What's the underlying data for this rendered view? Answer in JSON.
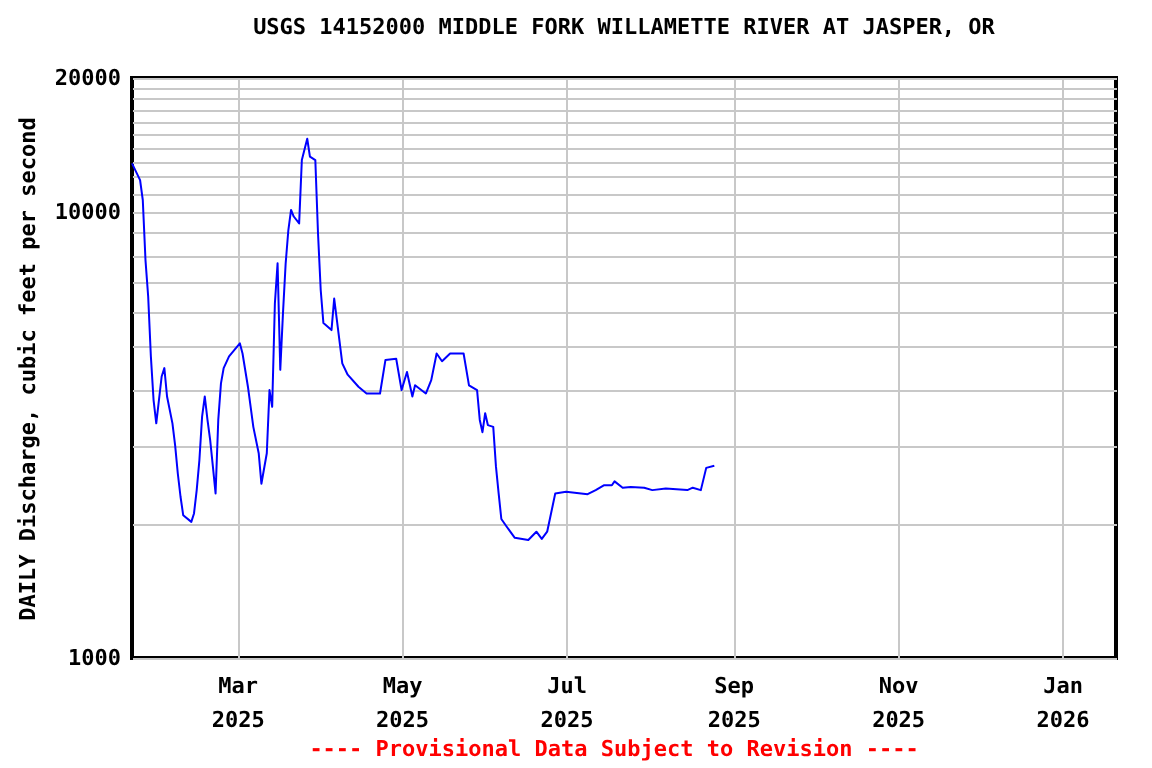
{
  "chart_data": {
    "type": "line",
    "title": "USGS 14152000 MIDDLE FORK WILLAMETTE RIVER AT JASPER, OR",
    "ylabel": "DAILY Discharge, cubic feet per second",
    "annotations": [
      "---- Provisional Data Subject to Revision ----"
    ],
    "log": "y",
    "grid": true,
    "legend": false,
    "marker": "none",
    "line_style": "solid",
    "xlim": [
      "2025-01-21",
      "2026-01-21"
    ],
    "xticks": [
      {
        "value": "2025-03-01",
        "label": "Mar 2025"
      },
      {
        "value": "2025-05-01",
        "label": "May 2025"
      },
      {
        "value": "2025-07-01",
        "label": "Jul 2025"
      },
      {
        "value": "2025-09-01",
        "label": "Sep 2025"
      },
      {
        "value": "2025-11-01",
        "label": "Nov 2025"
      },
      {
        "value": "2026-01-01",
        "label": "Jan 2026"
      }
    ],
    "ylim": [
      1000,
      20000
    ],
    "yticks": [
      1000,
      {
        "value": 2000,
        "label": null
      },
      {
        "value": 3000,
        "label": null
      },
      {
        "value": 4000,
        "label": null
      },
      {
        "value": 5000,
        "label": null
      },
      {
        "value": 6000,
        "label": null
      },
      {
        "value": 7000,
        "label": null
      },
      {
        "value": 8000,
        "label": null
      },
      {
        "value": 9000,
        "label": null
      },
      10000,
      {
        "value": 11000,
        "label": null
      },
      {
        "value": 12000,
        "label": null
      },
      {
        "value": 13000,
        "label": null
      },
      {
        "value": 14000,
        "label": null
      },
      {
        "value": 15000,
        "label": null
      },
      {
        "value": 16000,
        "label": null
      },
      {
        "value": 17000,
        "label": null
      },
      {
        "value": 18000,
        "label": null
      },
      {
        "value": 19000,
        "label": null
      },
      20000
    ],
    "x": [
      "2025-01-21",
      "2025-01-24",
      "2025-01-25",
      "2025-01-26",
      "2025-01-27",
      "2025-01-28",
      "2025-01-29",
      "2025-01-30",
      "2025-02-01",
      "2025-02-02",
      "2025-02-03",
      "2025-02-05",
      "2025-02-06",
      "2025-02-07",
      "2025-02-08",
      "2025-02-09",
      "2025-02-12",
      "2025-02-13",
      "2025-02-14",
      "2025-02-15",
      "2025-02-16",
      "2025-02-17",
      "2025-02-18",
      "2025-02-19",
      "2025-02-20",
      "2025-02-21",
      "2025-02-22",
      "2025-02-23",
      "2025-02-24",
      "2025-02-26",
      "2025-03-02",
      "2025-03-03",
      "2025-03-05",
      "2025-03-07",
      "2025-03-09",
      "2025-03-10",
      "2025-03-12",
      "2025-03-13",
      "2025-03-14",
      "2025-03-15",
      "2025-03-16",
      "2025-03-17",
      "2025-03-18",
      "2025-03-19",
      "2025-03-20",
      "2025-03-21",
      "2025-03-22",
      "2025-03-24",
      "2025-03-25",
      "2025-03-27",
      "2025-03-28",
      "2025-03-30",
      "2025-03-31",
      "2025-04-01",
      "2025-04-02",
      "2025-04-05",
      "2025-04-06",
      "2025-04-07",
      "2025-04-09",
      "2025-04-11",
      "2025-04-15",
      "2025-04-18",
      "2025-04-23",
      "2025-04-25",
      "2025-04-29",
      "2025-05-01",
      "2025-05-03",
      "2025-05-05",
      "2025-05-06",
      "2025-05-10",
      "2025-05-12",
      "2025-05-14",
      "2025-05-16",
      "2025-05-19",
      "2025-05-24",
      "2025-05-26",
      "2025-05-29",
      "2025-05-30",
      "2025-05-31",
      "2025-06-01",
      "2025-06-02",
      "2025-06-04",
      "2025-06-05",
      "2025-06-06",
      "2025-06-07",
      "2025-06-09",
      "2025-06-12",
      "2025-06-17",
      "2025-06-20",
      "2025-06-22",
      "2025-06-24",
      "2025-06-26",
      "2025-06-27",
      "2025-07-01",
      "2025-07-09",
      "2025-07-12",
      "2025-07-15",
      "2025-07-18",
      "2025-07-19",
      "2025-07-22",
      "2025-07-25",
      "2025-07-30",
      "2025-08-02",
      "2025-08-07",
      "2025-08-15",
      "2025-08-17",
      "2025-08-20",
      "2025-08-22",
      "2025-08-25"
    ],
    "series": [
      {
        "color": "#0000ff",
        "values": [
          12870,
          11800,
          10650,
          7810,
          6470,
          4750,
          3790,
          3360,
          4280,
          4470,
          3860,
          3360,
          3000,
          2590,
          2300,
          2090,
          2020,
          2110,
          2380,
          2780,
          3480,
          3860,
          3420,
          3080,
          2690,
          2340,
          3420,
          4130,
          4470,
          4750,
          5080,
          4820,
          4060,
          3300,
          2880,
          2460,
          2880,
          3990,
          3660,
          6240,
          7680,
          4430,
          5930,
          7680,
          9120,
          10120,
          9780,
          9440,
          13090,
          14620,
          13330,
          13090,
          8960,
          6690,
          5640,
          5440,
          6400,
          5730,
          4580,
          4320,
          4060,
          3920,
          3920,
          4660,
          4690,
          3990,
          4380,
          3860,
          4090,
          3920,
          4200,
          4820,
          4630,
          4820,
          4820,
          4090,
          3990,
          3420,
          3210,
          3540,
          3330,
          3300,
          2690,
          2340,
          2050,
          1970,
          1860,
          1840,
          1920,
          1850,
          1920,
          2190,
          2340,
          2360,
          2330,
          2380,
          2440,
          2440,
          2490,
          2410,
          2420,
          2410,
          2380,
          2400,
          2380,
          2410,
          2380,
          2670,
          2700
        ]
      }
    ]
  }
}
